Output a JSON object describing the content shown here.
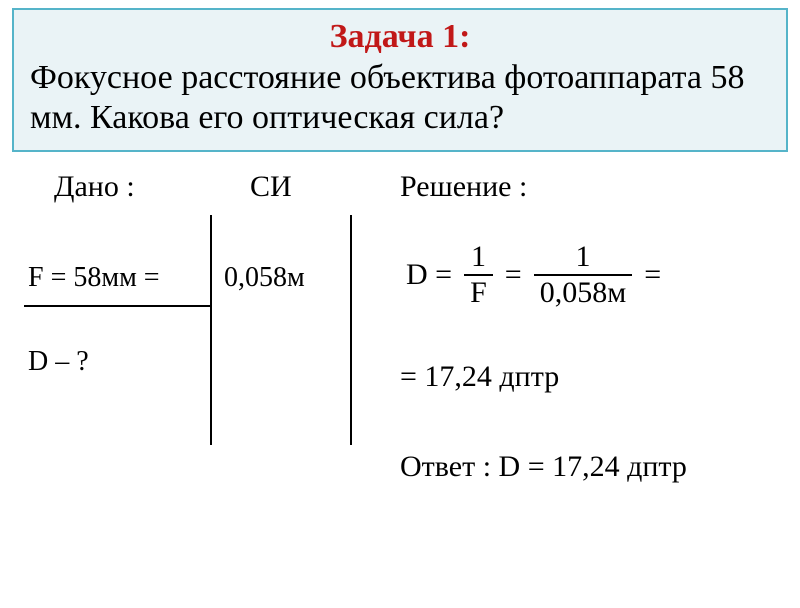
{
  "problem": {
    "title": "Задача 1:",
    "title_color": "#c11818",
    "text_color": "#000000",
    "box_border_color": "#55b4c9",
    "box_background_color": "#eaf3f6",
    "text": "Фокусное расстояние объектива фотоаппарата 58 мм. Какова его оптическая сила?"
  },
  "labels": {
    "given": "Дано :",
    "si": "СИ",
    "solution": "Решение :"
  },
  "given": {
    "F_expr": "F = 58мм =",
    "F_si": "0,058м",
    "find": "D – ?"
  },
  "formula": {
    "lhs": "D =",
    "frac1_num": "1",
    "frac1_den": "F",
    "eq": "=",
    "frac2_num": "1",
    "frac2_den": "0,058м",
    "trail_eq": "="
  },
  "result": {
    "line": "= 17,24 дптр"
  },
  "answer": {
    "line": "Ответ : D = 17,24 дптр"
  },
  "style": {
    "line_color": "#000000",
    "font_family": "Times New Roman"
  }
}
